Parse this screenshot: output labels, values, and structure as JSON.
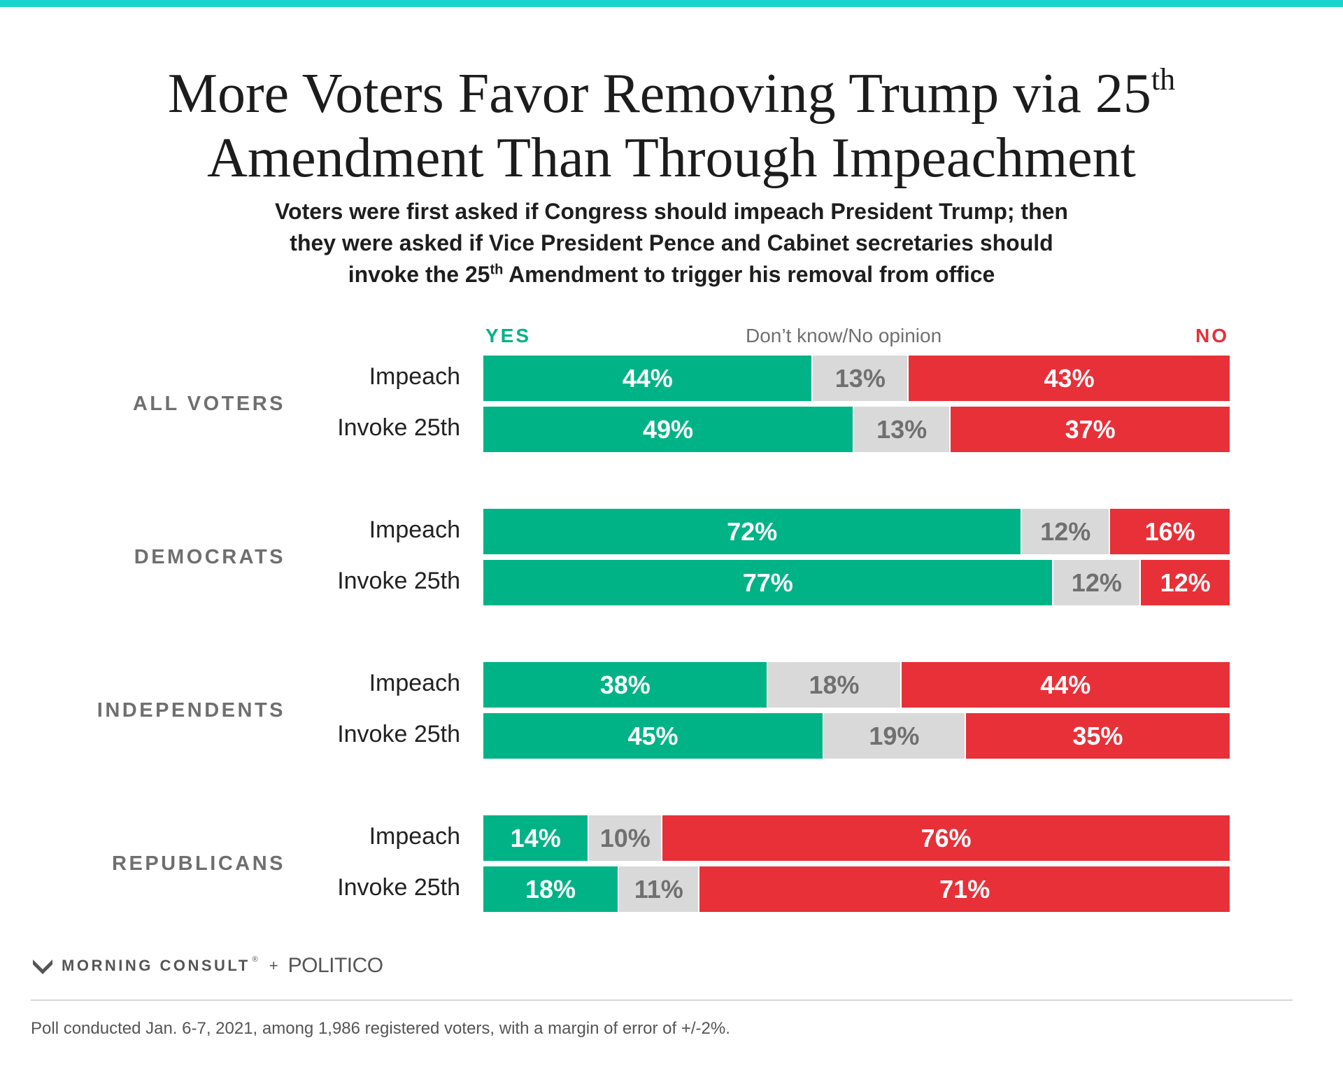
{
  "colors": {
    "accent": "#1ad3cd",
    "yes": "#00b386",
    "dk": "#d9d9d9",
    "no": "#e83038",
    "dk_text": "#707070"
  },
  "title": {
    "line1": "More Voters Favor Removing Trump via 25",
    "line1_sup": "th",
    "line2": "Amendment Than Through Impeachment"
  },
  "subtitle": {
    "line1": "Voters were first asked if Congress should impeach President Trump; then",
    "line2": "they were asked if Vice President Pence and Cabinet secretaries should",
    "line3_pre": "invoke the 25",
    "line3_sup": "th",
    "line3_post": " Amendment to trigger his removal from office"
  },
  "chart_data": {
    "type": "bar",
    "orientation": "horizontal-stacked-100",
    "legend": {
      "yes": "YES",
      "dk": "Don’t know/No opinion",
      "no": "NO"
    },
    "groups": [
      {
        "name": "ALL VOTERS",
        "rows": [
          {
            "label": "Impeach",
            "yes": 44,
            "dk": 13,
            "no": 43
          },
          {
            "label": "Invoke 25th",
            "yes": 49,
            "dk": 13,
            "no": 37
          }
        ]
      },
      {
        "name": "DEMOCRATS",
        "rows": [
          {
            "label": "Impeach",
            "yes": 72,
            "dk": 12,
            "no": 16
          },
          {
            "label": "Invoke 25th",
            "yes": 77,
            "dk": 12,
            "no": 12
          }
        ]
      },
      {
        "name": "INDEPENDENTS",
        "rows": [
          {
            "label": "Impeach",
            "yes": 38,
            "dk": 18,
            "no": 44
          },
          {
            "label": "Invoke 25th",
            "yes": 45,
            "dk": 19,
            "no": 35
          }
        ]
      },
      {
        "name": "REPUBLICANS",
        "rows": [
          {
            "label": "Impeach",
            "yes": 14,
            "dk": 10,
            "no": 76
          },
          {
            "label": "Invoke 25th",
            "yes": 18,
            "dk": 11,
            "no": 71
          }
        ]
      }
    ]
  },
  "branding": {
    "morning_consult": "MORNING CONSULT",
    "registered": "®",
    "plus": "+",
    "politico": "POLITICO",
    "logo_icon": "morning-consult-logo-icon"
  },
  "footnote": "Poll conducted Jan. 6-7, 2021, among 1,986 registered voters, with a margin of error of +/-2%."
}
